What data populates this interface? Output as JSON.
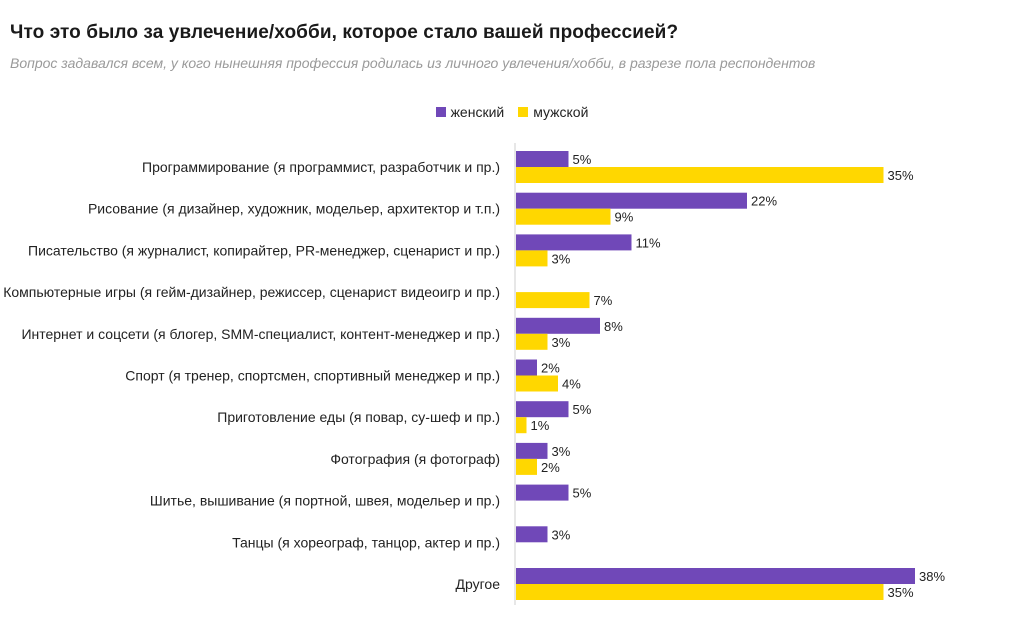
{
  "chart_data": {
    "type": "bar",
    "orientation": "horizontal",
    "title": "Что это было за увлечение/хобби, которое стало вашей профессией?",
    "subtitle": "Вопрос задавался всем, у кого нынешняя профессия родилась из личного увлечения/хобби, в разрезе пола респондентов",
    "legend_position": "top-center",
    "categories": [
      "Программирование (я программист, разработчик и пр.)",
      "Рисование (я дизайнер, художник, модельер, архитектор и т.п.)",
      "Писательство (я журналист, копирайтер, PR-менеджер, сценарист и пр.)",
      "Компьютерные игры (я гейм-дизайнер, режиссер, сценарист видеоигр и пр.)",
      "Интернет и соцсети (я блогер, SMM-специалист, контент-менеджер и пр.)",
      "Спорт (я тренер, спортсмен, спортивный менеджер и пр.)",
      "Приготовление еды (я повар, су-шеф и пр.)",
      "Фотография (я фотограф)",
      "Шитье, вышивание (я портной, швея, модельер и пр.)",
      "Танцы (я хореограф, танцор, актер и пр.)",
      "Другое"
    ],
    "series": [
      {
        "name": "женский",
        "color": "#7048b8",
        "values": [
          5,
          22,
          11,
          null,
          8,
          2,
          5,
          3,
          5,
          3,
          38
        ],
        "labels": [
          "5%",
          "22%",
          "11%",
          "",
          "8%",
          "2%",
          "5%",
          "3%",
          "5%",
          "3%",
          "38%"
        ]
      },
      {
        "name": "мужской",
        "color": "#ffd700",
        "values": [
          35,
          9,
          3,
          7,
          3,
          4,
          1,
          2,
          null,
          null,
          35
        ],
        "labels": [
          "35%",
          "9%",
          "3%",
          "7%",
          "3%",
          "4%",
          "1%",
          "2%",
          "",
          "",
          "35%"
        ]
      }
    ],
    "xlim": [
      0,
      40
    ],
    "unit": "%",
    "grid": false
  }
}
